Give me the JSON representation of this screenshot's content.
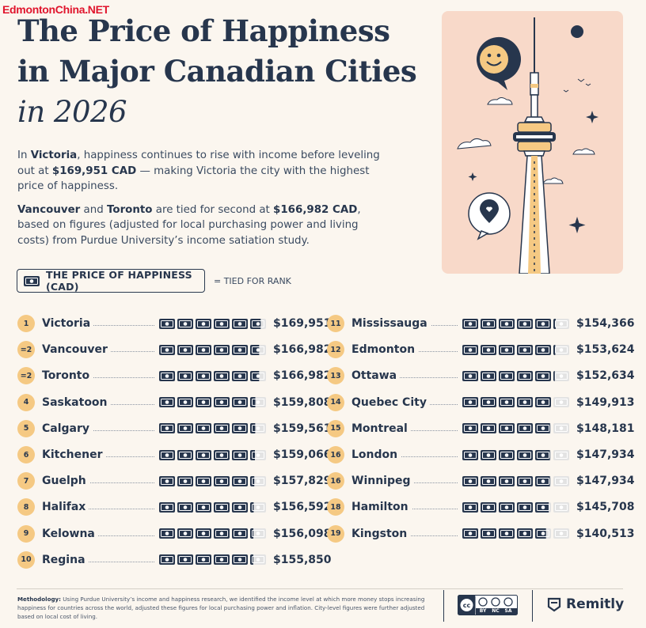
{
  "watermark": "EdmontonChina.NET",
  "title": {
    "line1": "The Price of Happiness",
    "line2": "in Major Canadian Cities",
    "line3": "in 2026"
  },
  "intro": {
    "p1_a": "In ",
    "p1_city": "Victoria",
    "p1_b": ", happiness continues to rise with income before leveling out at ",
    "p1_amount": "$169,951 CAD",
    "p1_c": " — making Victoria the city with the highest price of happiness.",
    "p2_city1": "Vancouver",
    "p2_a": " and ",
    "p2_city2": "Toronto",
    "p2_b": " are tied for second at ",
    "p2_amount": "$166,982 CAD",
    "p2_c": ", based on figures (adjusted for local purchasing power and living costs) from Purdue University’s income satiation study."
  },
  "legend": {
    "label": "THE PRICE OF HAPPINESS (CAD)",
    "tie_note": "= TIED FOR RANK",
    "icon": "money-bill-icon"
  },
  "colors": {
    "accent": "#f5c983",
    "navy": "#27364d",
    "bill_empty": "#e3e3e3",
    "art_bg": "#f8d9c9"
  },
  "chart_data": {
    "type": "table",
    "unit": "CAD",
    "bill_unit_value": 30000,
    "rows": [
      {
        "rank": "1",
        "city": "Victoria",
        "value": 169951,
        "label": "$169,951"
      },
      {
        "rank": "=2",
        "city": "Vancouver",
        "value": 166982,
        "label": "$166,982"
      },
      {
        "rank": "=2",
        "city": "Toronto",
        "value": 166982,
        "label": "$166,982"
      },
      {
        "rank": "4",
        "city": "Saskatoon",
        "value": 159808,
        "label": "$159,808"
      },
      {
        "rank": "5",
        "city": "Calgary",
        "value": 159561,
        "label": "$159,561"
      },
      {
        "rank": "6",
        "city": "Kitchener",
        "value": 159066,
        "label": "$159,066"
      },
      {
        "rank": "7",
        "city": "Guelph",
        "value": 157829,
        "label": "$157,829"
      },
      {
        "rank": "8",
        "city": "Halifax",
        "value": 156592,
        "label": "$156,592"
      },
      {
        "rank": "9",
        "city": "Kelowna",
        "value": 156098,
        "label": "$156,098"
      },
      {
        "rank": "10",
        "city": "Regina",
        "value": 155850,
        "label": "$155,850"
      },
      {
        "rank": "11",
        "city": "Mississauga",
        "value": 154366,
        "label": "$154,366"
      },
      {
        "rank": "12",
        "city": "Edmonton",
        "value": 153624,
        "label": "$153,624"
      },
      {
        "rank": "13",
        "city": "Ottawa",
        "value": 152634,
        "label": "$152,634"
      },
      {
        "rank": "14",
        "city": "Quebec City",
        "value": 149913,
        "label": "$149,913"
      },
      {
        "rank": "15",
        "city": "Montreal",
        "value": 148181,
        "label": "$148,181"
      },
      {
        "rank": "16",
        "city": "London",
        "value": 147934,
        "label": "$147,934"
      },
      {
        "rank": "16",
        "city": "Winnipeg",
        "value": 147934,
        "label": "$147,934"
      },
      {
        "rank": "18",
        "city": "Hamilton",
        "value": 145708,
        "label": "$145,708"
      },
      {
        "rank": "19",
        "city": "Kingston",
        "value": 140513,
        "label": "$140,513"
      }
    ]
  },
  "footer": {
    "method_label": "Methodology:",
    "method_text": " Using Purdue University’s income and happiness research, we identified the income level at which more money stops increasing happiness for countries across the world, adjusted these figures for local purchasing power and inflation. City-level figures were further adjusted based on local cost of living.",
    "license_labels": [
      "BY",
      "NC",
      "SA"
    ],
    "brand": "Remitly"
  }
}
